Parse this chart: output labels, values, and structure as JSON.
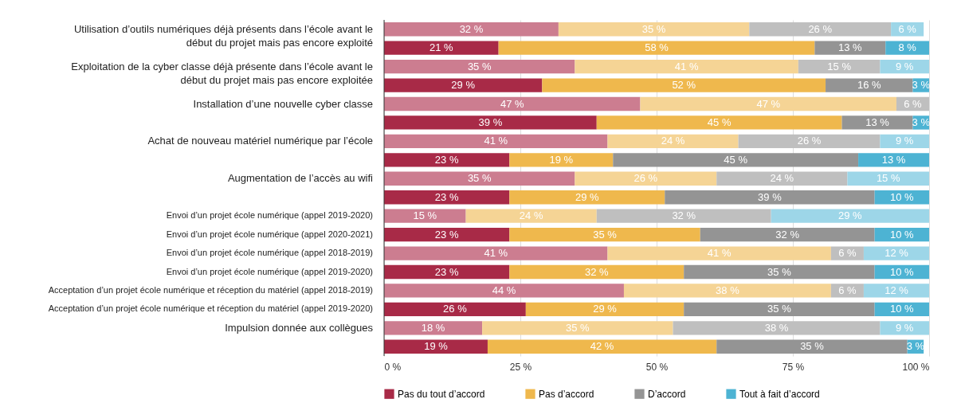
{
  "chart_data": {
    "type": "bar",
    "orientation": "horizontal",
    "stacked": true,
    "categories": [
      "Utilisation d’outils numériques déjà présents dans l’école avant le début du projet mais pas encore exploité",
      null,
      "Exploitation de la cyber classe déjà présente dans l’école avant le début du projet mais pas encore exploitée",
      null,
      "Installation d’une nouvelle cyber classe",
      null,
      "Achat de nouveau matériel numérique par l’école",
      null,
      "Augmentation de l’accès au wifi",
      null,
      "Envoi d’un projet école numérique (appel 2019-2020)",
      "Envoi d’un projet école numérique (appel 2020-2021)",
      "Envoi d’un projet école numérique (appel 2018-2019)",
      "Envoi d’un projet école numérique (appel 2019-2020)",
      "Acceptation d’un projet école numérique et réception du matériel (appel 2018-2019)",
      "Acceptation d’un projet école numérique et réception du matériel (appel 2019-2020)",
      "Impulsion donnée aux collègues",
      null
    ],
    "series": [
      {
        "color": "#cc7d90",
        "values": [
          32,
          null,
          35,
          null,
          47,
          null,
          41,
          null,
          35,
          null,
          15,
          null,
          41,
          null,
          44,
          null,
          18,
          null
        ],
        "value_labels": [
          "32 %",
          null,
          "35 %",
          null,
          "47 %",
          null,
          "41 %",
          null,
          "35 %",
          null,
          "15 %",
          null,
          "41 %",
          null,
          "44 %",
          null,
          "18 %",
          null
        ]
      },
      {
        "name": "Pas du tout d’accord",
        "color": "#a82a47",
        "values": [
          null,
          21,
          null,
          29,
          null,
          39,
          null,
          23,
          null,
          23,
          null,
          23,
          null,
          23,
          null,
          26,
          null,
          19
        ],
        "value_labels": [
          null,
          "21 %",
          null,
          "29 %",
          null,
          "39 %",
          null,
          "23 %",
          null,
          "23 %",
          null,
          "23 %",
          null,
          "23 %",
          null,
          "26 %",
          null,
          "19 %"
        ]
      },
      {
        "color": "#f5d495",
        "values": [
          35,
          null,
          41,
          null,
          47,
          null,
          24,
          null,
          26,
          null,
          24,
          null,
          41,
          null,
          38,
          null,
          35,
          null
        ],
        "value_labels": [
          "35 %",
          null,
          "41 %",
          null,
          "47 %",
          null,
          "24 %",
          null,
          "26 %",
          null,
          "24 %",
          null,
          "41 %",
          null,
          "38 %",
          null,
          "35 %",
          null
        ]
      },
      {
        "name": "Pas d’accord",
        "color": "#efb84d",
        "values": [
          null,
          58,
          null,
          52,
          null,
          45,
          null,
          19,
          null,
          28.5,
          null,
          35,
          null,
          32,
          null,
          29,
          null,
          42
        ],
        "value_labels": [
          null,
          "58 %",
          null,
          "52 %",
          null,
          "45 %",
          null,
          "19 %",
          null,
          "29 %",
          null,
          "35 %",
          null,
          "32 %",
          null,
          "29 %",
          null,
          "42 %"
        ]
      },
      {
        "color": "#bfbfbf",
        "values": [
          26,
          null,
          15,
          null,
          6,
          null,
          26,
          null,
          24,
          null,
          32,
          null,
          6,
          null,
          6,
          null,
          38,
          null
        ],
        "value_labels": [
          "26 %",
          null,
          "15 %",
          null,
          "6 %",
          null,
          "26 %",
          null,
          "24 %",
          null,
          "32 %",
          null,
          "6 %",
          null,
          "6 %",
          null,
          "38 %",
          null
        ]
      },
      {
        "name": "D’accord",
        "color": "#949494",
        "values": [
          null,
          13,
          null,
          16,
          null,
          13,
          null,
          45,
          null,
          38.5,
          null,
          32,
          null,
          35,
          null,
          35,
          null,
          35
        ],
        "value_labels": [
          null,
          "13 %",
          null,
          "16 %",
          null,
          "13 %",
          null,
          "45 %",
          null,
          "39 %",
          null,
          "32 %",
          null,
          "35 %",
          null,
          "35 %",
          null,
          "35 %"
        ]
      },
      {
        "color": "#9dd6e8",
        "values": [
          6,
          null,
          9,
          null,
          null,
          null,
          9,
          null,
          15,
          null,
          29,
          null,
          12,
          null,
          12,
          null,
          9,
          null
        ],
        "value_labels": [
          "6 %",
          null,
          "9 %",
          null,
          null,
          null,
          "9 %",
          null,
          "15 %",
          null,
          "29 %",
          null,
          "12 %",
          null,
          "12 %",
          null,
          "9 %",
          null
        ]
      },
      {
        "name": "Tout à fait d’accord",
        "color": "#4db3d3",
        "values": [
          null,
          8,
          null,
          3,
          null,
          3,
          null,
          13,
          null,
          10,
          null,
          10,
          null,
          10,
          null,
          10,
          null,
          3
        ],
        "value_labels": [
          null,
          "8 %",
          null,
          "3 %",
          null,
          "3 %",
          null,
          "13 %",
          null,
          "10 %",
          null,
          "10 %",
          null,
          "10 %",
          null,
          "10 %",
          null,
          "3 %"
        ]
      }
    ],
    "xlim": [
      0,
      100
    ],
    "xticks": [
      {
        "value": 0,
        "label": "0 %"
      },
      {
        "value": 25,
        "label": "25 %"
      },
      {
        "value": 50,
        "label": "50 %"
      },
      {
        "value": 75,
        "label": "75 %"
      },
      {
        "value": 100,
        "label": "100 %"
      }
    ],
    "grid": "x",
    "legend": "bottom"
  }
}
